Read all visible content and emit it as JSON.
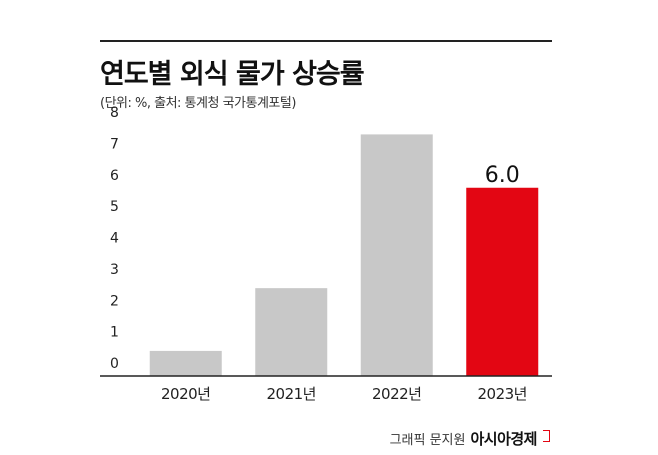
{
  "title": "연도별 외식 물가 상승률",
  "subtitle": "(단위: %, 출처: 통계청 국가통계포털)",
  "credit": {
    "label": "그래픽 문지원",
    "brand": "아시아경제"
  },
  "colors": {
    "bar": "#c8c8c8",
    "highlight": "#e30613",
    "text": "#222222",
    "axis": "#222222"
  },
  "chart_data": {
    "type": "bar",
    "categories": [
      "2020년",
      "2021년",
      "2022년",
      "2023년"
    ],
    "values": [
      0.8,
      2.8,
      7.7,
      6.0
    ],
    "highlight_index": 3,
    "data_labels": [
      null,
      null,
      null,
      "6.0"
    ],
    "ylim": [
      0,
      8
    ],
    "yticks": [
      0,
      1,
      2,
      3,
      4,
      5,
      6,
      7,
      8
    ],
    "grid": false,
    "xlabel": "",
    "ylabel": ""
  }
}
